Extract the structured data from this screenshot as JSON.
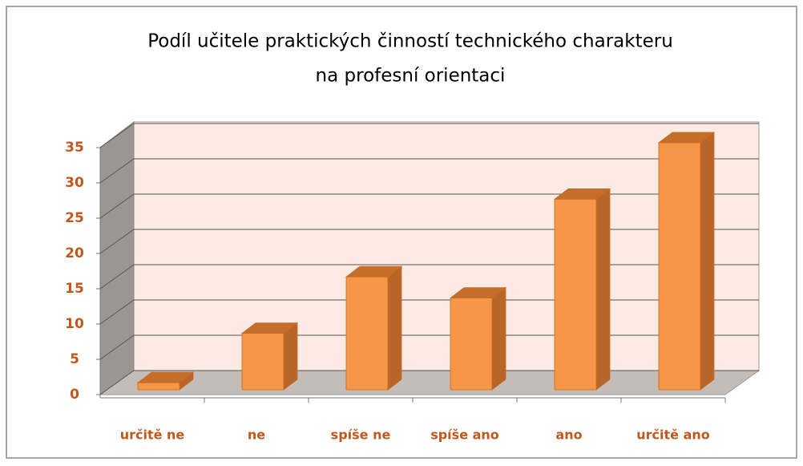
{
  "chart_data": {
    "type": "bar3d",
    "title": [
      "Podíl učitele praktických činností technického charakteru",
      "na profesní orientaci"
    ],
    "categories": [
      "určitě ne",
      "ne",
      "spíše ne",
      "spíše ano",
      "ano",
      "určitě ano"
    ],
    "values": [
      1,
      8,
      16,
      13,
      27,
      35
    ],
    "color": "#f79646",
    "ylim": [
      0,
      35
    ],
    "yticks": [
      0,
      5,
      10,
      15,
      20,
      25,
      30,
      35
    ],
    "grid": true
  }
}
